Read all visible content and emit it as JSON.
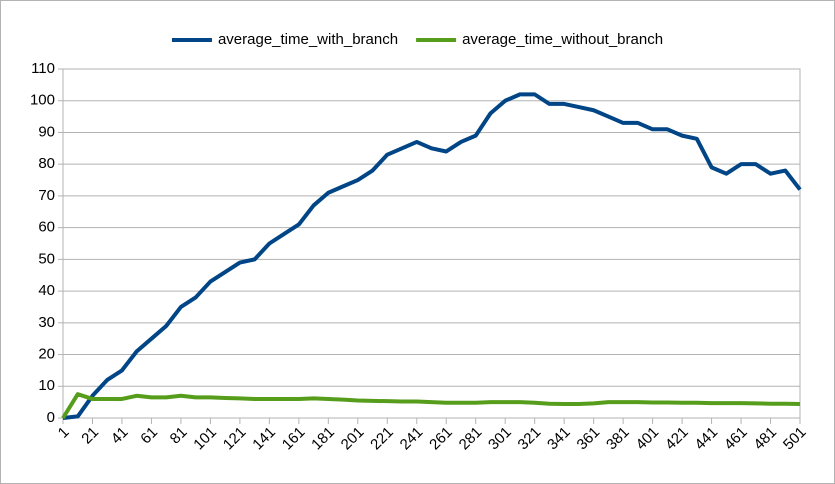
{
  "chart_data": {
    "type": "line",
    "x": [
      1,
      11,
      21,
      31,
      41,
      51,
      61,
      71,
      81,
      91,
      101,
      111,
      121,
      131,
      141,
      151,
      161,
      171,
      181,
      191,
      201,
      211,
      221,
      231,
      241,
      251,
      261,
      271,
      281,
      291,
      301,
      311,
      321,
      331,
      341,
      351,
      361,
      371,
      381,
      391,
      401,
      411,
      421,
      431,
      441,
      451,
      461,
      471,
      481,
      491,
      501
    ],
    "series": [
      {
        "name": "average_time_with_branch",
        "color": "#004586",
        "values": [
          0,
          0.5,
          7,
          12,
          15,
          21,
          25,
          29,
          35,
          38,
          43,
          46,
          49,
          50,
          55,
          58,
          61,
          67,
          71,
          73,
          75,
          78,
          83,
          85,
          87,
          85,
          84,
          87,
          89,
          96,
          100,
          102,
          102,
          99,
          99,
          98,
          97,
          95,
          93,
          93,
          91,
          91,
          89,
          88,
          79,
          77,
          80,
          80,
          77,
          78,
          72
        ]
      },
      {
        "name": "average_time_without_branch",
        "color": "#579d1c",
        "values": [
          0,
          7.5,
          6,
          6,
          6,
          7,
          6.5,
          6.5,
          7,
          6.5,
          6.5,
          6.3,
          6.2,
          6,
          6,
          6,
          6,
          6.2,
          6,
          5.8,
          5.5,
          5.4,
          5.3,
          5.2,
          5.2,
          5,
          4.8,
          4.8,
          4.8,
          5,
          5,
          5,
          4.8,
          4.5,
          4.4,
          4.4,
          4.6,
          5,
          5,
          5,
          4.9,
          4.9,
          4.8,
          4.8,
          4.7,
          4.7,
          4.7,
          4.6,
          4.5,
          4.5,
          4.4
        ]
      }
    ],
    "xlim": [
      1,
      501
    ],
    "xticks": [
      1,
      21,
      41,
      61,
      81,
      101,
      121,
      141,
      161,
      181,
      201,
      221,
      241,
      261,
      281,
      301,
      321,
      341,
      361,
      381,
      401,
      421,
      441,
      461,
      481,
      501
    ],
    "ylim": [
      0,
      110
    ],
    "yticks": [
      0,
      10,
      20,
      30,
      40,
      50,
      60,
      70,
      80,
      90,
      100,
      110
    ],
    "grid": true,
    "legend": "top"
  }
}
